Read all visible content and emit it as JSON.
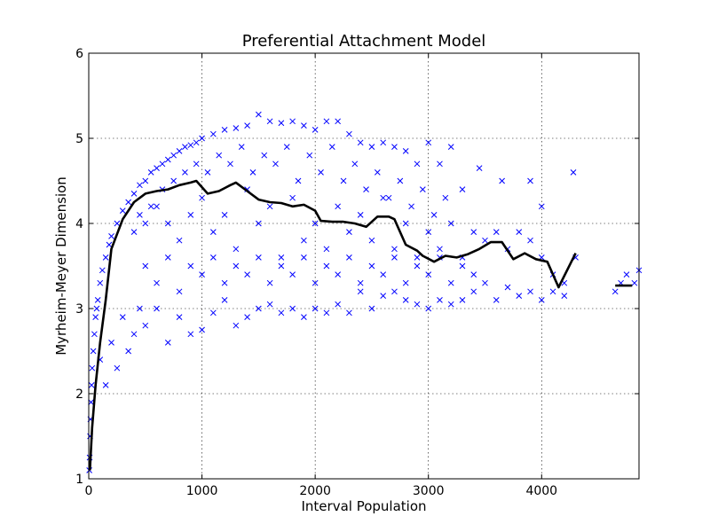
{
  "chart_data": {
    "type": "scatter",
    "title": "Preferential Attachment Model",
    "xlabel": "Interval Population",
    "ylabel": "Myrheim-Meyer Dimension",
    "xlim": [
      0,
      4860
    ],
    "ylim": [
      1,
      6
    ],
    "xticks": [
      0,
      1000,
      2000,
      3000,
      4000
    ],
    "yticks": [
      1,
      2,
      3,
      4,
      5,
      6
    ],
    "xtick_labels": [
      "0",
      "1000",
      "2000",
      "3000",
      "4000"
    ],
    "ytick_labels": [
      "1",
      "2",
      "3",
      "4",
      "5",
      "6"
    ],
    "grid": true,
    "colors": {
      "scatter": "#0000ff",
      "line": "#000000"
    },
    "series": [
      {
        "kind": "scatter",
        "marker": "x",
        "points": [
          [
            5,
            1.1
          ],
          [
            8,
            1.25
          ],
          [
            12,
            1.5
          ],
          [
            15,
            1.7
          ],
          [
            20,
            1.9
          ],
          [
            25,
            2.1
          ],
          [
            30,
            2.3
          ],
          [
            40,
            2.5
          ],
          [
            50,
            2.7
          ],
          [
            60,
            2.9
          ],
          [
            70,
            3.0
          ],
          [
            80,
            3.1
          ],
          [
            100,
            3.3
          ],
          [
            120,
            3.45
          ],
          [
            150,
            3.6
          ],
          [
            180,
            3.75
          ],
          [
            200,
            3.85
          ],
          [
            250,
            4.0
          ],
          [
            300,
            4.15
          ],
          [
            350,
            4.25
          ],
          [
            400,
            4.35
          ],
          [
            450,
            4.45
          ],
          [
            500,
            4.5
          ],
          [
            550,
            4.6
          ],
          [
            600,
            4.65
          ],
          [
            650,
            4.7
          ],
          [
            700,
            4.75
          ],
          [
            750,
            4.8
          ],
          [
            800,
            4.85
          ],
          [
            850,
            4.9
          ],
          [
            900,
            4.92
          ],
          [
            950,
            4.95
          ],
          [
            1000,
            5.0
          ],
          [
            1100,
            5.05
          ],
          [
            1200,
            5.1
          ],
          [
            1300,
            5.12
          ],
          [
            1400,
            5.15
          ],
          [
            1500,
            5.28
          ],
          [
            1600,
            5.2
          ],
          [
            1700,
            5.18
          ],
          [
            1800,
            5.2
          ],
          [
            1900,
            5.15
          ],
          [
            2000,
            5.1
          ],
          [
            2100,
            5.2
          ],
          [
            2200,
            5.2
          ],
          [
            2300,
            5.05
          ],
          [
            2400,
            4.95
          ],
          [
            2500,
            4.9
          ],
          [
            2600,
            4.95
          ],
          [
            2700,
            4.9
          ],
          [
            2800,
            4.85
          ],
          [
            2900,
            4.7
          ],
          [
            3000,
            4.95
          ],
          [
            3100,
            4.7
          ],
          [
            3200,
            4.9
          ],
          [
            3300,
            4.4
          ],
          [
            3450,
            4.65
          ],
          [
            3650,
            4.5
          ],
          [
            3900,
            4.5
          ],
          [
            4000,
            4.2
          ],
          [
            4280,
            4.6
          ],
          [
            100,
            2.4
          ],
          [
            150,
            2.1
          ],
          [
            200,
            2.6
          ],
          [
            250,
            2.3
          ],
          [
            300,
            2.9
          ],
          [
            350,
            2.5
          ],
          [
            400,
            2.7
          ],
          [
            450,
            3.0
          ],
          [
            500,
            2.8
          ],
          [
            600,
            3.0
          ],
          [
            700,
            2.6
          ],
          [
            800,
            2.9
          ],
          [
            900,
            2.7
          ],
          [
            1000,
            2.75
          ],
          [
            1100,
            2.95
          ],
          [
            1200,
            3.1
          ],
          [
            1300,
            2.8
          ],
          [
            1400,
            2.9
          ],
          [
            1500,
            3.0
          ],
          [
            1600,
            3.05
          ],
          [
            1700,
            2.95
          ],
          [
            1800,
            3.0
          ],
          [
            1900,
            2.9
          ],
          [
            2000,
            3.0
          ],
          [
            2100,
            2.95
          ],
          [
            2200,
            3.05
          ],
          [
            2300,
            2.95
          ],
          [
            2400,
            3.2
          ],
          [
            2500,
            3.0
          ],
          [
            2600,
            3.15
          ],
          [
            2700,
            3.2
          ],
          [
            2800,
            3.1
          ],
          [
            2900,
            3.05
          ],
          [
            3000,
            3.0
          ],
          [
            3100,
            3.1
          ],
          [
            3200,
            3.05
          ],
          [
            3300,
            3.1
          ],
          [
            3400,
            3.2
          ],
          [
            3500,
            3.3
          ],
          [
            3600,
            3.1
          ],
          [
            3700,
            3.25
          ],
          [
            3800,
            3.15
          ],
          [
            3900,
            3.2
          ],
          [
            4000,
            3.1
          ],
          [
            4100,
            3.2
          ],
          [
            4200,
            3.15
          ],
          [
            4650,
            3.2
          ],
          [
            4700,
            3.3
          ],
          [
            4750,
            3.4
          ],
          [
            4820,
            3.3
          ],
          [
            4860,
            3.45
          ],
          [
            600,
            4.2
          ],
          [
            700,
            4.0
          ],
          [
            800,
            3.8
          ],
          [
            900,
            4.1
          ],
          [
            1000,
            4.3
          ],
          [
            1100,
            3.9
          ],
          [
            1200,
            4.1
          ],
          [
            1300,
            3.7
          ],
          [
            1400,
            4.4
          ],
          [
            1500,
            4.0
          ],
          [
            1600,
            4.2
          ],
          [
            1700,
            3.6
          ],
          [
            1800,
            4.3
          ],
          [
            1900,
            3.8
          ],
          [
            2000,
            4.0
          ],
          [
            2100,
            3.7
          ],
          [
            2200,
            4.2
          ],
          [
            2300,
            3.9
          ],
          [
            2400,
            4.1
          ],
          [
            2500,
            3.8
          ],
          [
            2600,
            4.3
          ],
          [
            2700,
            3.7
          ],
          [
            2800,
            4.0
          ],
          [
            2900,
            3.6
          ],
          [
            3000,
            3.9
          ],
          [
            3100,
            3.7
          ],
          [
            3200,
            4.0
          ],
          [
            3300,
            3.6
          ],
          [
            3400,
            3.9
          ],
          [
            3500,
            3.8
          ],
          [
            3600,
            3.9
          ],
          [
            3700,
            3.7
          ],
          [
            3800,
            3.9
          ],
          [
            3900,
            3.8
          ],
          [
            4000,
            3.6
          ],
          [
            4100,
            3.4
          ],
          [
            4200,
            3.3
          ],
          [
            4300,
            3.6
          ],
          [
            500,
            3.5
          ],
          [
            600,
            3.3
          ],
          [
            700,
            3.6
          ],
          [
            800,
            3.2
          ],
          [
            900,
            3.5
          ],
          [
            1000,
            3.4
          ],
          [
            1100,
            3.6
          ],
          [
            1200,
            3.3
          ],
          [
            1300,
            3.5
          ],
          [
            1400,
            3.4
          ],
          [
            1500,
            3.6
          ],
          [
            1600,
            3.3
          ],
          [
            1700,
            3.5
          ],
          [
            1800,
            3.4
          ],
          [
            1900,
            3.6
          ],
          [
            2000,
            3.3
          ],
          [
            2100,
            3.5
          ],
          [
            2200,
            3.4
          ],
          [
            2300,
            3.6
          ],
          [
            2400,
            3.3
          ],
          [
            2500,
            3.5
          ],
          [
            2600,
            3.4
          ],
          [
            2700,
            3.6
          ],
          [
            2800,
            3.3
          ],
          [
            2900,
            3.5
          ],
          [
            3000,
            3.4
          ],
          [
            3100,
            3.6
          ],
          [
            3200,
            3.3
          ],
          [
            3300,
            3.5
          ],
          [
            3400,
            3.4
          ],
          [
            400,
            3.9
          ],
          [
            450,
            4.1
          ],
          [
            500,
            4.0
          ],
          [
            550,
            4.2
          ],
          [
            650,
            4.4
          ],
          [
            750,
            4.5
          ],
          [
            850,
            4.6
          ],
          [
            950,
            4.7
          ],
          [
            1050,
            4.6
          ],
          [
            1150,
            4.8
          ],
          [
            1250,
            4.7
          ],
          [
            1350,
            4.9
          ],
          [
            1450,
            4.6
          ],
          [
            1550,
            4.8
          ],
          [
            1650,
            4.7
          ],
          [
            1750,
            4.9
          ],
          [
            1850,
            4.5
          ],
          [
            1950,
            4.8
          ],
          [
            2050,
            4.6
          ],
          [
            2150,
            4.9
          ],
          [
            2250,
            4.5
          ],
          [
            2350,
            4.7
          ],
          [
            2450,
            4.4
          ],
          [
            2550,
            4.6
          ],
          [
            2650,
            4.3
          ],
          [
            2750,
            4.5
          ],
          [
            2850,
            4.2
          ],
          [
            2950,
            4.4
          ],
          [
            3050,
            4.1
          ],
          [
            3150,
            4.3
          ]
        ]
      },
      {
        "kind": "line",
        "points": [
          [
            10,
            1.1
          ],
          [
            30,
            1.6
          ],
          [
            60,
            2.1
          ],
          [
            100,
            2.6
          ],
          [
            150,
            3.1
          ],
          [
            200,
            3.7
          ],
          [
            300,
            4.05
          ],
          [
            400,
            4.25
          ],
          [
            500,
            4.35
          ],
          [
            600,
            4.38
          ],
          [
            700,
            4.4
          ],
          [
            800,
            4.45
          ],
          [
            900,
            4.48
          ],
          [
            950,
            4.5
          ],
          [
            1050,
            4.35
          ],
          [
            1150,
            4.38
          ],
          [
            1250,
            4.45
          ],
          [
            1300,
            4.48
          ],
          [
            1400,
            4.38
          ],
          [
            1500,
            4.28
          ],
          [
            1600,
            4.25
          ],
          [
            1700,
            4.24
          ],
          [
            1800,
            4.2
          ],
          [
            1900,
            4.22
          ],
          [
            2000,
            4.15
          ],
          [
            2050,
            4.03
          ],
          [
            2150,
            4.02
          ],
          [
            2250,
            4.02
          ],
          [
            2350,
            4.0
          ],
          [
            2450,
            3.96
          ],
          [
            2550,
            4.08
          ],
          [
            2650,
            4.08
          ],
          [
            2700,
            4.05
          ],
          [
            2800,
            3.75
          ],
          [
            2900,
            3.68
          ],
          [
            2950,
            3.62
          ],
          [
            3050,
            3.55
          ],
          [
            3150,
            3.62
          ],
          [
            3250,
            3.6
          ],
          [
            3350,
            3.64
          ],
          [
            3450,
            3.7
          ],
          [
            3550,
            3.78
          ],
          [
            3650,
            3.78
          ],
          [
            3750,
            3.58
          ],
          [
            3850,
            3.65
          ],
          [
            3950,
            3.58
          ],
          [
            4050,
            3.55
          ],
          [
            4150,
            3.25
          ],
          [
            4300,
            3.65
          ]
        ]
      },
      {
        "kind": "line",
        "points": [
          [
            4650,
            3.27
          ],
          [
            4800,
            3.27
          ]
        ]
      }
    ]
  }
}
